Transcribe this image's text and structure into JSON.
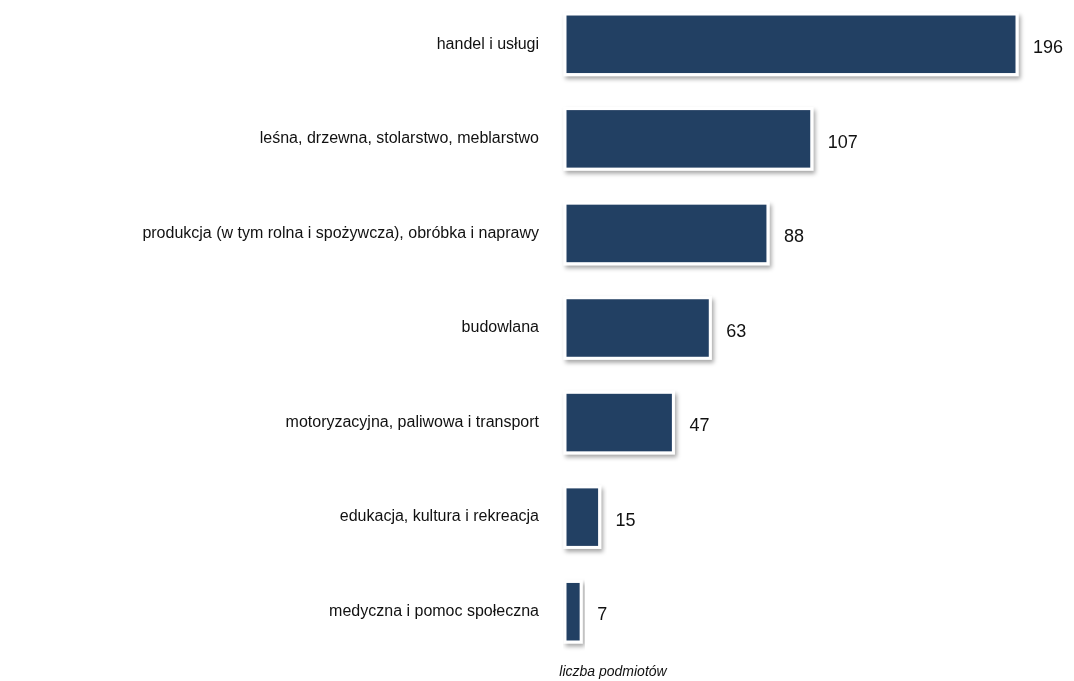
{
  "chart_data": {
    "type": "bar",
    "orientation": "horizontal",
    "xlabel": "liczba podmiotów",
    "categories": [
      "handel i usługi",
      "leśna, drzewna, stolarstwo, meblarstwo",
      "produkcja (w tym rolna i spożywcza), obróbka i naprawy",
      "budowlana",
      "motoryzacyjna, paliwowa i transport",
      "edukacja, kultura i rekreacja",
      "medyczna i pomoc społeczna"
    ],
    "values": [
      196,
      107,
      88,
      63,
      47,
      15,
      7
    ],
    "color": "#233f63",
    "data_labels": true
  }
}
